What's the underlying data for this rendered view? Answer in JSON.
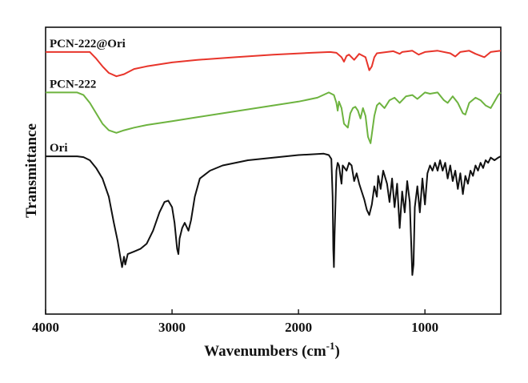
{
  "chart_data": {
    "type": "line",
    "title": "",
    "xlabel": "Wavenumbers (cm",
    "xlabel_sup": "-1",
    "xlabel_tail": ")",
    "ylabel": "Transmittance",
    "xlim": [
      4000,
      400
    ],
    "x_reversed": true,
    "ylim": [
      -0.05,
      1.05
    ],
    "x_ticks": [
      4000,
      3000,
      2000,
      1000
    ],
    "x_tick_labels": [
      "4000",
      "3000",
      "2000",
      "1000"
    ],
    "y_ticks_shown": false,
    "grid": false,
    "legend": "none (series labelled directly above each trace)",
    "series": [
      {
        "name": "PCN-222@Ori",
        "color": "#e8352b",
        "points": [
          [
            4000,
            0.955
          ],
          [
            3750,
            0.955
          ],
          [
            3650,
            0.955
          ],
          [
            3600,
            0.93
          ],
          [
            3550,
            0.9
          ],
          [
            3500,
            0.875
          ],
          [
            3440,
            0.862
          ],
          [
            3380,
            0.87
          ],
          [
            3300,
            0.89
          ],
          [
            3200,
            0.9
          ],
          [
            3000,
            0.915
          ],
          [
            2800,
            0.925
          ],
          [
            2500,
            0.935
          ],
          [
            2200,
            0.945
          ],
          [
            1900,
            0.952
          ],
          [
            1750,
            0.955
          ],
          [
            1700,
            0.952
          ],
          [
            1660,
            0.935
          ],
          [
            1640,
            0.918
          ],
          [
            1620,
            0.94
          ],
          [
            1600,
            0.945
          ],
          [
            1560,
            0.925
          ],
          [
            1520,
            0.948
          ],
          [
            1470,
            0.935
          ],
          [
            1440,
            0.885
          ],
          [
            1420,
            0.9
          ],
          [
            1400,
            0.935
          ],
          [
            1380,
            0.95
          ],
          [
            1300,
            0.955
          ],
          [
            1250,
            0.958
          ],
          [
            1200,
            0.948
          ],
          [
            1180,
            0.955
          ],
          [
            1100,
            0.96
          ],
          [
            1050,
            0.945
          ],
          [
            1000,
            0.955
          ],
          [
            900,
            0.96
          ],
          [
            800,
            0.95
          ],
          [
            760,
            0.938
          ],
          [
            720,
            0.955
          ],
          [
            650,
            0.96
          ],
          [
            600,
            0.948
          ],
          [
            530,
            0.935
          ],
          [
            480,
            0.955
          ],
          [
            400,
            0.96
          ]
        ]
      },
      {
        "name": "PCN-222",
        "color": "#6db33f",
        "points": [
          [
            4000,
            0.8
          ],
          [
            3750,
            0.8
          ],
          [
            3700,
            0.79
          ],
          [
            3650,
            0.76
          ],
          [
            3600,
            0.72
          ],
          [
            3550,
            0.68
          ],
          [
            3500,
            0.655
          ],
          [
            3440,
            0.645
          ],
          [
            3380,
            0.655
          ],
          [
            3300,
            0.665
          ],
          [
            3200,
            0.675
          ],
          [
            3000,
            0.69
          ],
          [
            2800,
            0.705
          ],
          [
            2600,
            0.72
          ],
          [
            2400,
            0.735
          ],
          [
            2200,
            0.75
          ],
          [
            2000,
            0.765
          ],
          [
            1850,
            0.78
          ],
          [
            1760,
            0.8
          ],
          [
            1720,
            0.79
          ],
          [
            1700,
            0.76
          ],
          [
            1690,
            0.73
          ],
          [
            1680,
            0.765
          ],
          [
            1660,
            0.74
          ],
          [
            1640,
            0.68
          ],
          [
            1610,
            0.665
          ],
          [
            1590,
            0.72
          ],
          [
            1570,
            0.74
          ],
          [
            1550,
            0.745
          ],
          [
            1530,
            0.73
          ],
          [
            1510,
            0.7
          ],
          [
            1490,
            0.74
          ],
          [
            1470,
            0.71
          ],
          [
            1450,
            0.63
          ],
          [
            1430,
            0.605
          ],
          [
            1420,
            0.64
          ],
          [
            1400,
            0.71
          ],
          [
            1380,
            0.75
          ],
          [
            1360,
            0.76
          ],
          [
            1320,
            0.74
          ],
          [
            1280,
            0.77
          ],
          [
            1240,
            0.78
          ],
          [
            1200,
            0.76
          ],
          [
            1150,
            0.785
          ],
          [
            1100,
            0.79
          ],
          [
            1060,
            0.775
          ],
          [
            1000,
            0.8
          ],
          [
            960,
            0.795
          ],
          [
            900,
            0.8
          ],
          [
            850,
            0.77
          ],
          [
            820,
            0.76
          ],
          [
            780,
            0.785
          ],
          [
            740,
            0.76
          ],
          [
            700,
            0.72
          ],
          [
            680,
            0.715
          ],
          [
            650,
            0.76
          ],
          [
            600,
            0.78
          ],
          [
            560,
            0.77
          ],
          [
            520,
            0.75
          ],
          [
            480,
            0.74
          ],
          [
            450,
            0.765
          ],
          [
            420,
            0.79
          ],
          [
            400,
            0.8
          ]
        ]
      },
      {
        "name": "Ori",
        "color": "#111111",
        "points": [
          [
            4000,
            0.555
          ],
          [
            3750,
            0.555
          ],
          [
            3700,
            0.552
          ],
          [
            3650,
            0.54
          ],
          [
            3600,
            0.51
          ],
          [
            3550,
            0.47
          ],
          [
            3500,
            0.4
          ],
          [
            3460,
            0.3
          ],
          [
            3430,
            0.23
          ],
          [
            3410,
            0.17
          ],
          [
            3395,
            0.13
          ],
          [
            3380,
            0.17
          ],
          [
            3370,
            0.14
          ],
          [
            3350,
            0.18
          ],
          [
            3300,
            0.19
          ],
          [
            3250,
            0.2
          ],
          [
            3200,
            0.22
          ],
          [
            3150,
            0.27
          ],
          [
            3100,
            0.34
          ],
          [
            3060,
            0.38
          ],
          [
            3030,
            0.385
          ],
          [
            3000,
            0.36
          ],
          [
            2980,
            0.3
          ],
          [
            2960,
            0.2
          ],
          [
            2950,
            0.18
          ],
          [
            2940,
            0.24
          ],
          [
            2920,
            0.28
          ],
          [
            2900,
            0.3
          ],
          [
            2870,
            0.27
          ],
          [
            2850,
            0.31
          ],
          [
            2820,
            0.4
          ],
          [
            2780,
            0.47
          ],
          [
            2700,
            0.5
          ],
          [
            2600,
            0.52
          ],
          [
            2400,
            0.54
          ],
          [
            2200,
            0.55
          ],
          [
            2000,
            0.56
          ],
          [
            1800,
            0.565
          ],
          [
            1760,
            0.56
          ],
          [
            1740,
            0.545
          ],
          [
            1730,
            0.4
          ],
          [
            1725,
            0.2
          ],
          [
            1720,
            0.13
          ],
          [
            1715,
            0.25
          ],
          [
            1700,
            0.5
          ],
          [
            1690,
            0.53
          ],
          [
            1680,
            0.52
          ],
          [
            1660,
            0.45
          ],
          [
            1650,
            0.52
          ],
          [
            1620,
            0.5
          ],
          [
            1600,
            0.53
          ],
          [
            1580,
            0.52
          ],
          [
            1560,
            0.46
          ],
          [
            1540,
            0.49
          ],
          [
            1520,
            0.45
          ],
          [
            1500,
            0.42
          ],
          [
            1480,
            0.39
          ],
          [
            1460,
            0.35
          ],
          [
            1440,
            0.33
          ],
          [
            1420,
            0.37
          ],
          [
            1400,
            0.44
          ],
          [
            1380,
            0.4
          ],
          [
            1370,
            0.48
          ],
          [
            1350,
            0.43
          ],
          [
            1330,
            0.5
          ],
          [
            1300,
            0.45
          ],
          [
            1280,
            0.38
          ],
          [
            1260,
            0.47
          ],
          [
            1240,
            0.36
          ],
          [
            1220,
            0.45
          ],
          [
            1200,
            0.28
          ],
          [
            1180,
            0.42
          ],
          [
            1160,
            0.34
          ],
          [
            1140,
            0.46
          ],
          [
            1120,
            0.38
          ],
          [
            1100,
            0.1
          ],
          [
            1090,
            0.14
          ],
          [
            1080,
            0.36
          ],
          [
            1060,
            0.44
          ],
          [
            1040,
            0.34
          ],
          [
            1020,
            0.47
          ],
          [
            1000,
            0.37
          ],
          [
            980,
            0.49
          ],
          [
            960,
            0.52
          ],
          [
            940,
            0.5
          ],
          [
            920,
            0.53
          ],
          [
            900,
            0.5
          ],
          [
            880,
            0.54
          ],
          [
            860,
            0.5
          ],
          [
            840,
            0.53
          ],
          [
            820,
            0.47
          ],
          [
            800,
            0.52
          ],
          [
            780,
            0.46
          ],
          [
            760,
            0.5
          ],
          [
            740,
            0.43
          ],
          [
            720,
            0.49
          ],
          [
            700,
            0.41
          ],
          [
            680,
            0.48
          ],
          [
            660,
            0.45
          ],
          [
            640,
            0.5
          ],
          [
            620,
            0.48
          ],
          [
            600,
            0.52
          ],
          [
            580,
            0.5
          ],
          [
            560,
            0.53
          ],
          [
            540,
            0.51
          ],
          [
            520,
            0.54
          ],
          [
            500,
            0.53
          ],
          [
            480,
            0.55
          ],
          [
            450,
            0.54
          ],
          [
            420,
            0.55
          ],
          [
            400,
            0.555
          ]
        ]
      }
    ]
  }
}
